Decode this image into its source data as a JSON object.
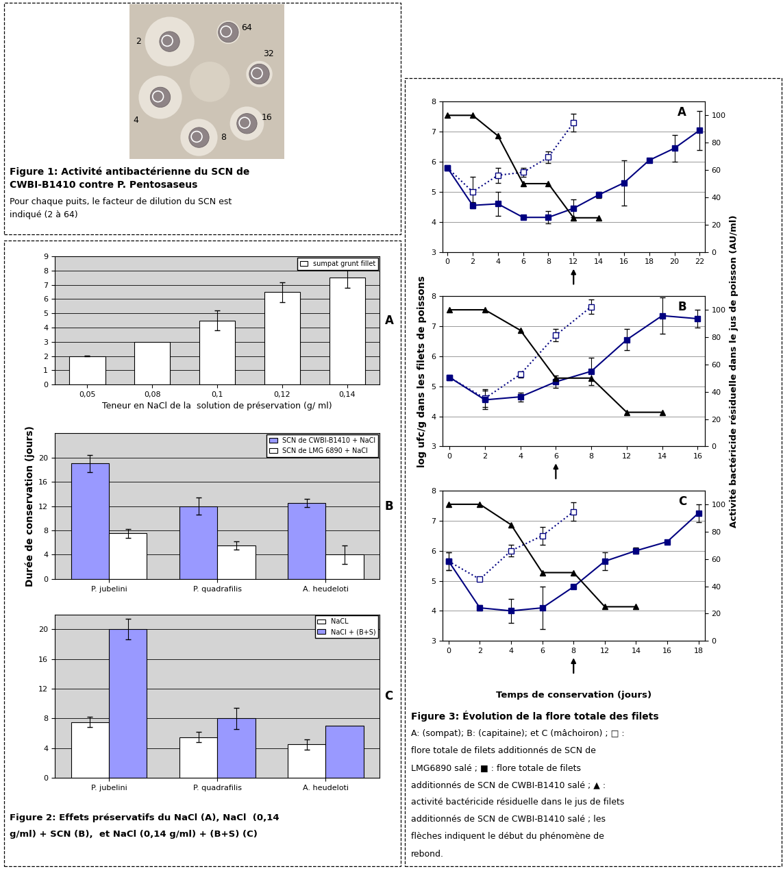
{
  "figure1": {
    "dilutions": [
      2,
      4,
      8,
      16,
      32,
      64
    ],
    "caption_lines": [
      "Figure 1: Activité antibactérienne du SCN de",
      "CWBI-B1410 contre P. Pentosaseus",
      "Pour chaque puits, le facteur de dilution du SCN est",
      "indiqué (2 à 64)"
    ]
  },
  "figure2": {
    "caption_lines": [
      "Figure 2: Effets préservatifs du NaCl (A), NaCl  (0,14",
      "g/ml) + SCN (B),  et NaCl (0,14 g/ml) + (B+S) (C)"
    ]
  },
  "figure3": {
    "caption_lines": [
      "Figure 3: Évolution de la flore totale des filets",
      "A: (sompat); B: (capitaine); et C (mâchoiron) ; □ :",
      "flore totale de filets additionnés de SCN de",
      "LMG6890 salé ; ■ : flore totale de filets",
      "additionnés de SCN de CWBI-B1410 salé ; ▲ :",
      "activité bactéricide résiduelle dans le jus de filets",
      "additionnés de SCN de CWBI-B1410 salé ; les",
      "flèches indiquent le début du phénomène de",
      "rebond."
    ]
  },
  "chart_data": [
    {
      "type": "bar",
      "annotation": "A",
      "categories": [
        "0,05",
        "0,08",
        "0,1",
        "0,12",
        "0,14"
      ],
      "xlabel": "Teneur en NaCl de la  solution de préservation (g/ ml)",
      "series": [
        {
          "name": "sumpat grunt fillet",
          "color": "#ffffff",
          "values": [
            2,
            3,
            4.5,
            6.5,
            7.5
          ],
          "errors": [
            0.03,
            null,
            0.7,
            0.7,
            0.7
          ]
        }
      ],
      "ylim": [
        0,
        9
      ],
      "yticks": [
        0,
        1,
        2,
        3,
        4,
        5,
        6,
        7,
        8,
        9
      ],
      "grid": true,
      "legend": "upper right"
    },
    {
      "type": "bar",
      "annotation": "B",
      "categories": [
        "P. jubelini",
        "P. quadrafilis",
        "A. heudeloti"
      ],
      "ylabel": "Durée de conservation (jours)",
      "series": [
        {
          "name": "SCN de CWBI-B1410 + NaCl",
          "color": "#9999ff",
          "values": [
            19,
            12,
            12.5
          ],
          "errors": [
            1.4,
            1.4,
            0.7
          ]
        },
        {
          "name": "SCN de LMG 6890 + NaCl",
          "color": "#ffffff",
          "values": [
            7.5,
            5.5,
            4
          ],
          "errors": [
            0.7,
            0.7,
            1.5
          ]
        }
      ],
      "ylim": [
        0,
        24
      ],
      "yticks": [
        0,
        4,
        8,
        12,
        16,
        20
      ],
      "grid": true,
      "legend": "upper right"
    },
    {
      "type": "bar",
      "annotation": "C",
      "categories": [
        "P. jubelini",
        "P. quadrafilis",
        "A. heudeloti"
      ],
      "series": [
        {
          "name": "NaCL",
          "color": "#ffffff",
          "values": [
            7.5,
            5.5,
            4.5
          ],
          "errors": [
            0.7,
            0.7,
            0.7
          ]
        },
        {
          "name": "NaCl + (B+S)",
          "color": "#9999ff",
          "values": [
            20,
            8,
            7
          ],
          "errors": [
            1.4,
            1.4,
            null
          ]
        }
      ],
      "ylim": [
        0,
        22
      ],
      "yticks": [
        0,
        4,
        8,
        12,
        16,
        20
      ],
      "grid": true,
      "legend": "upper right"
    },
    {
      "type": "line",
      "annotation": "A",
      "rebound_at": "12",
      "categories": [
        "0",
        "2",
        "4",
        "6",
        "8",
        "12",
        "14",
        "16",
        "18",
        "20",
        "22"
      ],
      "series": [
        {
          "color": "#000080",
          "marker": "square_open",
          "line_style": "dotted",
          "values": [
            5.8,
            5.0,
            5.55,
            5.65,
            6.15,
            7.3,
            null,
            null,
            null,
            null,
            null
          ],
          "errors": [
            null,
            0.5,
            0.25,
            0.15,
            0.2,
            0.3,
            null,
            null,
            null,
            null,
            null
          ]
        },
        {
          "color": "#000080",
          "marker": "square",
          "line_style": "solid",
          "values": [
            5.8,
            4.55,
            4.6,
            4.15,
            4.15,
            4.45,
            4.9,
            5.3,
            6.05,
            6.45,
            7.05
          ],
          "errors": [
            null,
            0.1,
            0.4,
            0.05,
            0.2,
            0.3,
            0.1,
            0.75,
            0.05,
            0.45,
            0.65
          ]
        },
        {
          "color": "#000000",
          "marker": "triangle",
          "line_style": "solid",
          "axis": "y2",
          "values": [
            100,
            100,
            85,
            50,
            50,
            25,
            25,
            null,
            null,
            null,
            null
          ]
        }
      ],
      "ylim": [
        3,
        8
      ],
      "yticks": [
        3,
        4,
        5,
        6,
        7,
        8
      ],
      "y2lim": [
        0,
        110
      ],
      "y2ticks": [
        0,
        20,
        40,
        60,
        80,
        100
      ],
      "grid": true
    },
    {
      "type": "line",
      "annotation": "B",
      "rebound_at": "6",
      "categories": [
        "0",
        "2",
        "4",
        "6",
        "8",
        "12",
        "14",
        "16"
      ],
      "ylabel": "log ufc/g dans les filets de poissons",
      "y2label": "Activité bactéricide résiduelle dans le jus de poisson (AU/ml)",
      "series": [
        {
          "color": "#000080",
          "marker": "square_open",
          "line_style": "dotted",
          "values": [
            5.3,
            4.6,
            5.4,
            6.7,
            7.65,
            null,
            null,
            null
          ],
          "errors": [
            null,
            0.3,
            0.1,
            0.2,
            0.25,
            null,
            null,
            null
          ]
        },
        {
          "color": "#000080",
          "marker": "square",
          "line_style": "solid",
          "values": [
            5.3,
            4.55,
            4.65,
            5.15,
            5.5,
            6.55,
            7.35,
            7.25
          ],
          "errors": [
            null,
            0.3,
            0.15,
            0.2,
            0.45,
            0.35,
            0.6,
            0.3
          ]
        },
        {
          "color": "#000000",
          "marker": "triangle",
          "line_style": "solid",
          "axis": "y2",
          "values": [
            100,
            100,
            85,
            50,
            50,
            25,
            25,
            null
          ]
        }
      ],
      "ylim": [
        3,
        8
      ],
      "yticks": [
        3,
        4,
        5,
        6,
        7,
        8
      ],
      "y2lim": [
        0,
        110
      ],
      "y2ticks": [
        0,
        20,
        40,
        60,
        80,
        100
      ],
      "grid": true
    },
    {
      "type": "line",
      "annotation": "C",
      "rebound_at": "8",
      "categories": [
        "0",
        "2",
        "4",
        "6",
        "8",
        "12",
        "14",
        "16",
        "18"
      ],
      "xlabel": "Temps de conservation (jours)",
      "series": [
        {
          "color": "#000080",
          "marker": "square_open",
          "line_style": "dotted",
          "values": [
            5.65,
            5.05,
            6.0,
            6.5,
            7.3,
            null,
            null,
            null,
            null
          ],
          "errors": [
            0.3,
            null,
            0.2,
            0.3,
            0.3,
            null,
            null,
            null,
            null
          ]
        },
        {
          "color": "#000080",
          "marker": "square",
          "line_style": "solid",
          "values": [
            5.65,
            4.1,
            4.0,
            4.1,
            4.8,
            5.65,
            6.0,
            6.3,
            7.25
          ],
          "errors": [
            0.3,
            0.1,
            0.4,
            0.7,
            null,
            0.3,
            0.1,
            0.05,
            0.3
          ]
        },
        {
          "color": "#000000",
          "marker": "triangle",
          "line_style": "solid",
          "axis": "y2",
          "values": [
            100,
            100,
            85,
            50,
            50,
            25,
            25,
            null,
            null
          ]
        }
      ],
      "ylim": [
        3,
        8
      ],
      "yticks": [
        3,
        4,
        5,
        6,
        7,
        8
      ],
      "y2lim": [
        0,
        110
      ],
      "y2ticks": [
        0,
        20,
        40,
        60,
        80,
        100
      ],
      "grid": true
    }
  ]
}
